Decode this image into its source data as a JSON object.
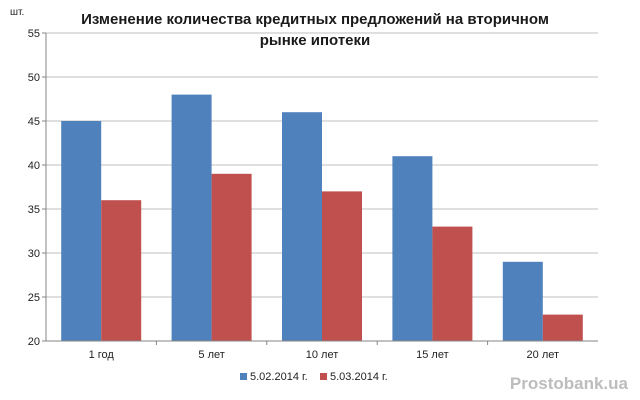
{
  "chart_data": {
    "type": "bar",
    "title_lines": [
      "Изменение количества кредитных  предложений  на вторичном",
      "рынке ипотеки"
    ],
    "ylabel": "шт.",
    "ylim": [
      20,
      55
    ],
    "yticks": [
      20,
      25,
      30,
      35,
      40,
      45,
      50,
      55
    ],
    "grid": true,
    "legend_position": "bottom",
    "categories": [
      "1 год",
      "5 лет",
      "10 лет",
      "15 лет",
      "20 лет"
    ],
    "series": [
      {
        "name": "5.02.2014 г.",
        "color": "#4F81BD",
        "values": [
          45,
          48,
          46,
          41,
          29
        ]
      },
      {
        "name": "5.03.2014 г.",
        "color": "#C0504D",
        "values": [
          36,
          39,
          37,
          33,
          23
        ]
      }
    ]
  },
  "watermark": "Prostobank.ua"
}
